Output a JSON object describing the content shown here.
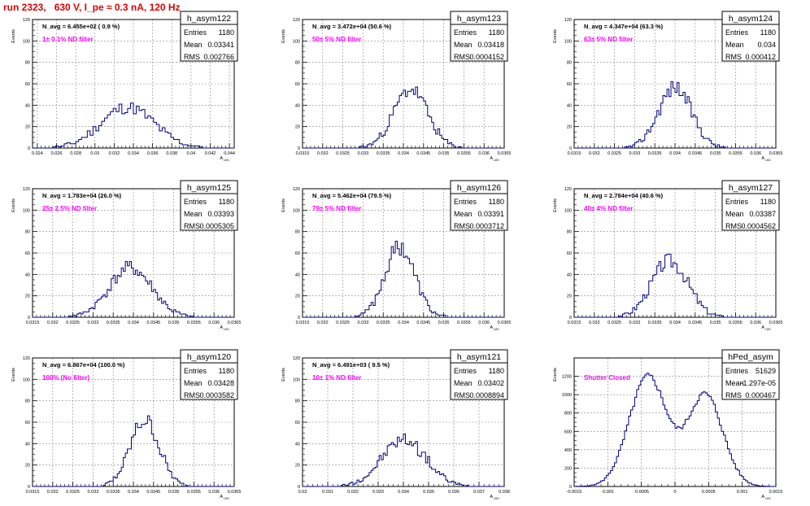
{
  "page_title": "run 2323,   630 V, I_pe ≈ 0.3 nA, 120 Hz",
  "y_axis_label": "Events",
  "x_axis_label": "A",
  "x_axis_sub": "LED",
  "stats_labels": {
    "entries": "Entries",
    "mean": "Mean",
    "rms": "RMS"
  },
  "colors": {
    "title": "#e00000",
    "note": "#ff00ff",
    "hist": "#000080",
    "grid": "#888888"
  },
  "chart_data": [
    {
      "type": "histogram",
      "hist_name": "h_asym122",
      "entries": "1180",
      "mean": "0.03341",
      "rms": "0.002766",
      "navg": "N_avg = 6.455e+02 ( 0.9 %)",
      "note": "1± 0.1% ND filter",
      "xlim": [
        0.0235,
        0.0445
      ],
      "ylim": [
        0,
        120
      ],
      "yticks": [
        0,
        20,
        40,
        60,
        80,
        100,
        120
      ],
      "xticks": [
        0.024,
        0.026,
        0.028,
        0.03,
        0.032,
        0.034,
        0.036,
        0.038,
        0.04,
        0.042,
        0.044
      ],
      "xticklabels": [
        "0.024",
        "0.026",
        "0.028",
        "0.03",
        "0.032",
        "0.034",
        "0.036",
        "0.038",
        "0.04",
        "0.042",
        "0.044"
      ],
      "peak": {
        "mean": 0.0334,
        "sigma": 0.0028,
        "amp": 38,
        "bin": 0.0003
      },
      "seed": 11
    },
    {
      "type": "histogram",
      "hist_name": "h_asym123",
      "entries": "1180",
      "mean": "0.03418",
      "rms": "0.0004152",
      "navg": "N_avg = 3.472e+04 (50.6 %)",
      "note": "50± 5% ND filter",
      "xlim": [
        0.0315,
        0.0365
      ],
      "ylim": [
        0,
        120
      ],
      "yticks": [
        0,
        20,
        40,
        60,
        80,
        100,
        120
      ],
      "xticks": [
        0.0315,
        0.032,
        0.0325,
        0.033,
        0.0335,
        0.034,
        0.0345,
        0.035,
        0.0355,
        0.036,
        0.0365
      ],
      "xticklabels": [
        "0.0315",
        "0.032",
        "0.0325",
        "0.033",
        "0.0335",
        "0.034",
        "0.0345",
        "0.035",
        "0.0355",
        "0.036",
        "0.0365"
      ],
      "peak": {
        "mean": 0.03418,
        "sigma": 0.00042,
        "amp": 55,
        "bin": 5e-05
      },
      "seed": 23
    },
    {
      "type": "histogram",
      "hist_name": "h_asym124",
      "entries": "1180",
      "mean": "0.034",
      "rms": "0.000412",
      "navg": "N_avg = 4.347e+04 (63.3 %)",
      "note": "63± 5% ND filter",
      "xlim": [
        0.0315,
        0.0365
      ],
      "ylim": [
        0,
        120
      ],
      "yticks": [
        0,
        20,
        40,
        60,
        80,
        100,
        120
      ],
      "xticks": [
        0.0315,
        0.032,
        0.0325,
        0.033,
        0.0335,
        0.034,
        0.0345,
        0.035,
        0.0355,
        0.036,
        0.0365
      ],
      "xticklabels": [
        "0.0315",
        "0.032",
        "0.0325",
        "0.033",
        "0.0335",
        "0.034",
        "0.0345",
        "0.035",
        "0.0355",
        "0.036",
        "0.0365"
      ],
      "peak": {
        "mean": 0.034,
        "sigma": 0.00041,
        "amp": 57,
        "bin": 5e-05
      },
      "seed": 37
    },
    {
      "type": "histogram",
      "hist_name": "h_asym125",
      "entries": "1180",
      "mean": "0.03393",
      "rms": "0.0005305",
      "navg": "N_avg = 1.783e+04 (26.0 %)",
      "note": "25± 2.5% ND filter",
      "xlim": [
        0.0315,
        0.0365
      ],
      "ylim": [
        0,
        120
      ],
      "yticks": [
        0,
        20,
        40,
        60,
        80,
        100,
        120
      ],
      "xticks": [
        0.0315,
        0.032,
        0.0325,
        0.033,
        0.0335,
        0.034,
        0.0345,
        0.035,
        0.0355,
        0.036,
        0.0365
      ],
      "xticklabels": [
        "0.0315",
        "0.032",
        "0.0325",
        "0.033",
        "0.0335",
        "0.034",
        "0.0345",
        "0.035",
        "0.0355",
        "0.036",
        "0.0365"
      ],
      "peak": {
        "mean": 0.03393,
        "sigma": 0.00053,
        "amp": 46,
        "bin": 5e-05
      },
      "seed": 41
    },
    {
      "type": "histogram",
      "hist_name": "h_asym126",
      "entries": "1180",
      "mean": "0.03391",
      "rms": "0.0003712",
      "navg": "N_avg = 5.462e+04 (79.5 %)",
      "note": "79± 5% ND filter",
      "xlim": [
        0.0315,
        0.0365
      ],
      "ylim": [
        0,
        120
      ],
      "yticks": [
        0,
        20,
        40,
        60,
        80,
        100,
        120
      ],
      "xticks": [
        0.0315,
        0.032,
        0.0325,
        0.033,
        0.0335,
        0.034,
        0.0345,
        0.035,
        0.0355,
        0.036,
        0.0365
      ],
      "xticklabels": [
        "0.0315",
        "0.032",
        "0.0325",
        "0.033",
        "0.0335",
        "0.034",
        "0.0345",
        "0.035",
        "0.0355",
        "0.036",
        "0.0365"
      ],
      "peak": {
        "mean": 0.03391,
        "sigma": 0.00037,
        "amp": 66,
        "bin": 5e-05
      },
      "seed": 53
    },
    {
      "type": "histogram",
      "hist_name": "h_asym127",
      "entries": "1180",
      "mean": "0.03387",
      "rms": "0.0004562",
      "navg": "N_avg = 2.784e+04 (40.6 %)",
      "note": "40± 4% ND filter",
      "xlim": [
        0.0315,
        0.0365
      ],
      "ylim": [
        0,
        120
      ],
      "yticks": [
        0,
        20,
        40,
        60,
        80,
        100,
        120
      ],
      "xticks": [
        0.0315,
        0.032,
        0.0325,
        0.033,
        0.0335,
        0.034,
        0.0345,
        0.035,
        0.0355,
        0.036,
        0.0365
      ],
      "xticklabels": [
        "0.0315",
        "0.032",
        "0.0325",
        "0.033",
        "0.0335",
        "0.034",
        "0.0345",
        "0.035",
        "0.0355",
        "0.036",
        "0.0365"
      ],
      "peak": {
        "mean": 0.03387,
        "sigma": 0.00045,
        "amp": 53,
        "bin": 5e-05
      },
      "seed": 67
    },
    {
      "type": "histogram",
      "hist_name": "h_asym120",
      "entries": "1180",
      "mean": "0.03428",
      "rms": "0.0003582",
      "navg": "N_avg = 6.867e+04 (100.0 %)",
      "note": "100% (No filter)",
      "xlim": [
        0.0315,
        0.0365
      ],
      "ylim": [
        0,
        120
      ],
      "yticks": [
        0,
        20,
        40,
        60,
        80,
        100,
        120
      ],
      "xticks": [
        0.0315,
        0.032,
        0.0325,
        0.033,
        0.0335,
        0.034,
        0.0345,
        0.035,
        0.0355,
        0.036,
        0.0365
      ],
      "xticklabels": [
        "0.0315",
        "0.032",
        "0.0325",
        "0.033",
        "0.0335",
        "0.034",
        "0.0345",
        "0.035",
        "0.0355",
        "0.036",
        "0.0365"
      ],
      "peak": {
        "mean": 0.03428,
        "sigma": 0.00036,
        "amp": 62,
        "bin": 5e-05
      },
      "seed": 79
    },
    {
      "type": "histogram",
      "hist_name": "h_asym121",
      "entries": "1180",
      "mean": "0.03402",
      "rms": "0.0008894",
      "navg": "N_avg = 6.491e+03 ( 9.5 %)",
      "note": "10± 1% ND filter",
      "xlim": [
        0.03,
        0.038
      ],
      "ylim": [
        0,
        120
      ],
      "yticks": [
        0,
        20,
        40,
        60,
        80,
        100,
        120
      ],
      "xticks": [
        0.03,
        0.031,
        0.032,
        0.033,
        0.034,
        0.035,
        0.036,
        0.037,
        0.038
      ],
      "xticklabels": [
        "0.03",
        "0.031",
        "0.032",
        "0.033",
        "0.034",
        "0.035",
        "0.036",
        "0.037",
        "0.038"
      ],
      "peak": {
        "mean": 0.03402,
        "sigma": 0.00087,
        "amp": 44,
        "bin": 8e-05
      },
      "seed": 97
    },
    {
      "type": "histogram",
      "hist_name": "hPed_asym",
      "entries": "51629",
      "mean": "-1.297e-05",
      "rms": "0.000467",
      "navg": "",
      "note": "Shutter Closed",
      "xlim": [
        -0.0015,
        0.0015
      ],
      "ylim": [
        0,
        1400
      ],
      "yticks": [
        0,
        200,
        400,
        600,
        800,
        1000,
        1200
      ],
      "xticks": [
        -0.0015,
        -0.001,
        -0.0005,
        0,
        0.0005,
        0.001,
        0.0015
      ],
      "xticklabels": [
        "-0.0015",
        "-0.001",
        "-0.0005",
        "0",
        "0.0005",
        "0.001",
        "0.0015"
      ],
      "peak": {
        "mean": -0.0004,
        "sigma": 0.00028,
        "amp": 1200,
        "mean2": 0.00045,
        "sigma2": 0.00026,
        "amp2": 1000,
        "bin": 3e-05
      },
      "seed": 5
    }
  ]
}
